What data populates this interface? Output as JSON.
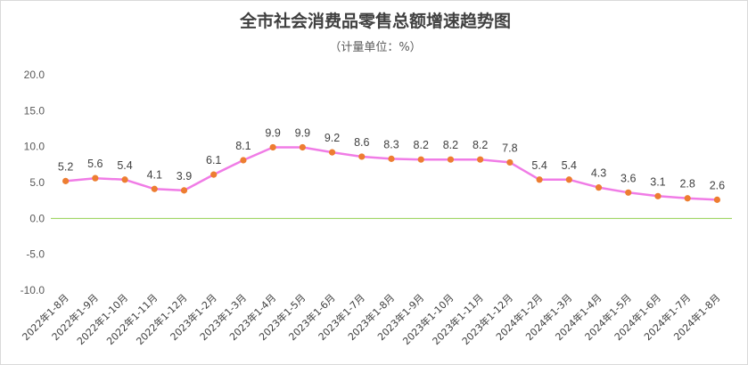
{
  "chart_data": {
    "type": "line",
    "title": "全市社会消费品零售总额增速趋势图",
    "subtitle": "（计量单位：%）",
    "xlabel": "",
    "ylabel": "",
    "ylim": [
      -10,
      20
    ],
    "yticks": [
      "20.0",
      "15.0",
      "10.0",
      "5.0",
      "0.0",
      "-5.0",
      "-10.0"
    ],
    "grid": false,
    "legend": "none",
    "categories": [
      "2022年1-8月",
      "2022年1-9月",
      "2022年1-10月",
      "2022年1-11月",
      "2022年1-12月",
      "2023年1-2月",
      "2023年1-3月",
      "2023年1-4月",
      "2023年1-5月",
      "2023年1-6月",
      "2023年1-7月",
      "2023年1-8月",
      "2023年1-9月",
      "2023年1-10月",
      "2023年1-11月",
      "2023年1-12月",
      "2024年1-2月",
      "2024年1-3月",
      "2024年1-4月",
      "2024年1-5月",
      "2024年1-6月",
      "2024年1-7月",
      "2024年1-8月"
    ],
    "values": [
      5.2,
      5.6,
      5.4,
      4.1,
      3.9,
      6.1,
      8.1,
      9.9,
      9.9,
      9.2,
      8.6,
      8.3,
      8.2,
      8.2,
      8.2,
      7.8,
      5.4,
      5.4,
      4.3,
      3.6,
      3.1,
      2.8,
      2.6
    ],
    "data_labels": [
      "5.2",
      "5.6",
      "5.4",
      "4.1",
      "3.9",
      "6.1",
      "8.1",
      "9.9",
      "9.9",
      "9.2",
      "8.6",
      "8.3",
      "8.2",
      "8.2",
      "8.2",
      "7.8",
      "5.4",
      "5.4",
      "4.3",
      "3.6",
      "3.1",
      "2.8",
      "2.6"
    ],
    "colors": {
      "line": "#f07ce6",
      "marker": "#ed7d31",
      "zero_line": "#92d050",
      "text": "#404040"
    }
  }
}
